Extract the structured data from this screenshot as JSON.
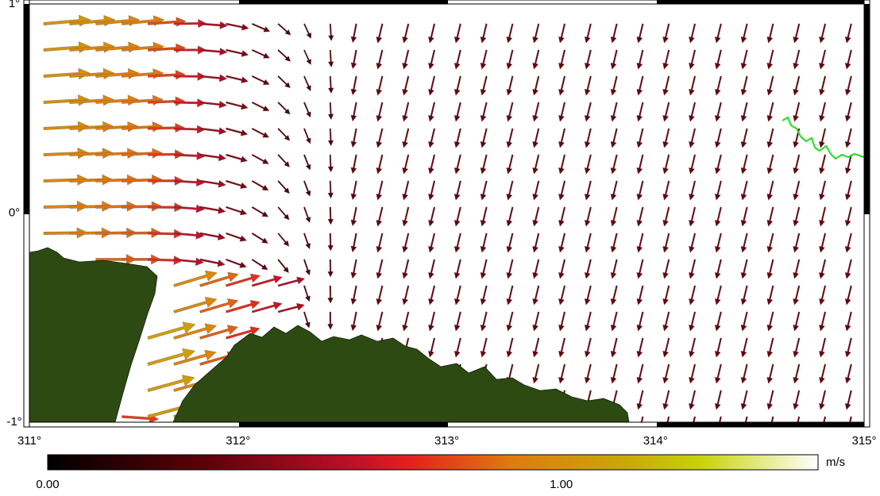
{
  "map": {
    "lon_ticks": [
      {
        "value": 311,
        "label": "311°"
      },
      {
        "value": 312,
        "label": "312°"
      },
      {
        "value": 313,
        "label": "313°"
      },
      {
        "value": 314,
        "label": "314°"
      },
      {
        "value": 315,
        "label": "315°"
      }
    ],
    "lat_ticks": [
      {
        "value": 1,
        "label": "1°"
      },
      {
        "value": 0,
        "label": "0°"
      },
      {
        "value": -1,
        "label": "-1°"
      }
    ]
  },
  "colorbar": {
    "range": [
      0,
      1.5
    ],
    "ticks": [
      {
        "value": 0,
        "label": "0.00"
      },
      {
        "value": 1,
        "label": "1.00"
      }
    ],
    "unit": "m/s"
  }
}
